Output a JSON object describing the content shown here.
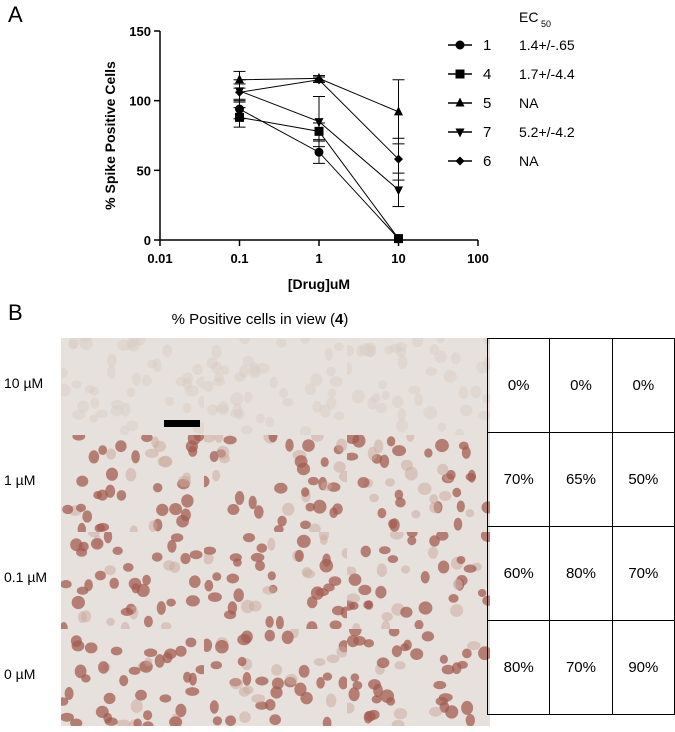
{
  "panel_a": {
    "letter": "A"
  },
  "panel_b": {
    "letter": "B",
    "title_prefix": "% Positive cells in view (",
    "title_bold": "4",
    "title_suffix": ")",
    "row_labels": [
      "10 µM",
      "1 µM",
      "0.1 µM",
      "0 µM"
    ],
    "table": [
      [
        "0%",
        "0%",
        "0%"
      ],
      [
        "70%",
        "65%",
        "50%"
      ],
      [
        "60%",
        "80%",
        "70%"
      ],
      [
        "80%",
        "70%",
        "90%"
      ]
    ],
    "stain_level": [
      0,
      0.65,
      0.7,
      0.8
    ],
    "colors": {
      "background": "#e6e1dc",
      "cell": "#c9a79c",
      "stained": "#a45c52",
      "pale": "#d9cdc6"
    }
  },
  "chart_data": {
    "type": "scatter",
    "xscale": "log",
    "xlim": [
      0.01,
      100
    ],
    "ylim": [
      0,
      150
    ],
    "xticks": [
      "0.01",
      "0.1",
      "1",
      "10",
      "100"
    ],
    "yticks": [
      "0",
      "50",
      "100",
      "150"
    ],
    "xlabel": "[Drug]uM",
    "ylabel": "% Spike Positive Cells",
    "legend_title": "EC",
    "legend_title_sub": "50",
    "x": [
      0.1,
      1,
      10
    ],
    "series": [
      {
        "name": "1",
        "marker": "circle",
        "ec50": "1.4+/-.65",
        "values": [
          94,
          63,
          1
        ],
        "err": [
          7,
          8,
          1
        ]
      },
      {
        "name": "4",
        "marker": "square",
        "ec50": "1.7+/-4.4",
        "values": [
          88,
          78,
          1
        ],
        "err": [
          7,
          6,
          1
        ]
      },
      {
        "name": "5",
        "marker": "triangle-up",
        "ec50": "NA",
        "values": [
          115,
          116,
          92
        ],
        "err": [
          6,
          2,
          23
        ]
      },
      {
        "name": "7",
        "marker": "triangle-down",
        "ec50": "5.2+/-4.2",
        "values": [
          107,
          85,
          36
        ],
        "err": [
          8,
          18,
          12
        ]
      },
      {
        "name": "6",
        "marker": "diamond",
        "ec50": "NA",
        "values": [
          106,
          115,
          58
        ],
        "err": [
          6,
          2,
          15
        ]
      }
    ]
  }
}
